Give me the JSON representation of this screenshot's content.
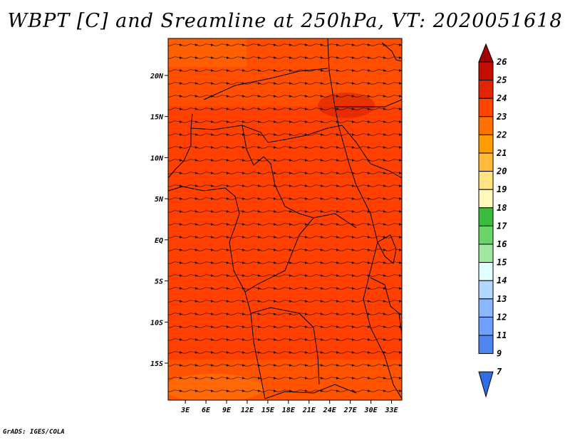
{
  "title": "WBPT [C] and Sreamline at 250hPa, VT: 2020051618",
  "credit": "GrADS: IGES/COLA",
  "map": {
    "lat_labels": [
      "20N",
      "15N",
      "10N",
      "5N",
      "EQ",
      "5S",
      "10S",
      "15S"
    ],
    "lat_values": [
      20,
      15,
      10,
      5,
      0,
      -5,
      -10,
      -15
    ],
    "lon_labels": [
      "3E",
      "6E",
      "9E",
      "12E",
      "15E",
      "18E",
      "21E",
      "24E",
      "27E",
      "30E",
      "33E"
    ],
    "lon_values": [
      3,
      6,
      9,
      12,
      15,
      18,
      21,
      24,
      27,
      30,
      33
    ],
    "lon_range": [
      0.5,
      34.5
    ],
    "lat_range": [
      -19.5,
      24.5
    ],
    "field_color": "#ff4000"
  },
  "colorbar": {
    "labels": [
      "26",
      "25",
      "24",
      "23",
      "22",
      "21",
      "20",
      "19",
      "18",
      "17",
      "16",
      "15",
      "14",
      "13",
      "12",
      "11",
      "9",
      "7"
    ],
    "colors": [
      "#a50000",
      "#c40d00",
      "#e02500",
      "#ff4500",
      "#ff7000",
      "#ff9c00",
      "#ffba37",
      "#ffe481",
      "#fff8bb",
      "#3cbc3c",
      "#6ad36a",
      "#a0e6a0",
      "#e1ffff",
      "#b4d7ff",
      "#8ab8ff",
      "#6ea0ff",
      "#4f86f0",
      "#2f6ee6"
    ]
  }
}
